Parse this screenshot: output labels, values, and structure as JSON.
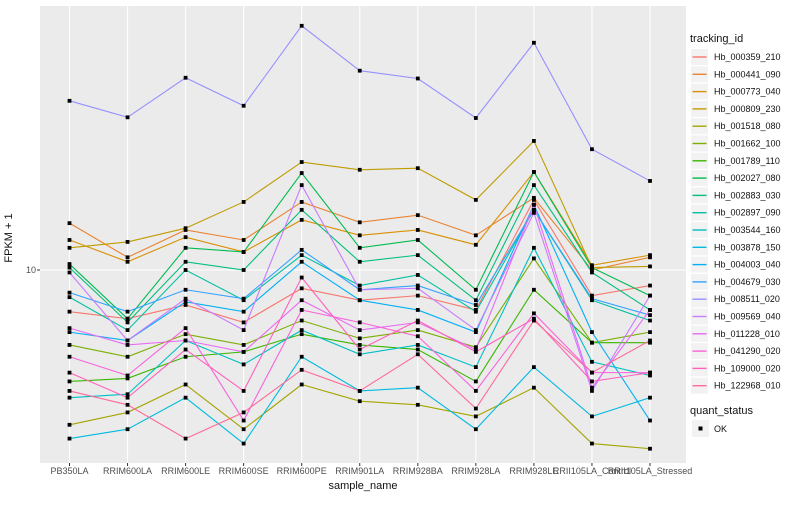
{
  "chart_data": {
    "type": "line",
    "title": "",
    "xlabel": "sample_name",
    "ylabel": "FPKM + 1",
    "y_scale": "log10",
    "y_tick_label": "10",
    "y_ticks": [
      10
    ],
    "ylim_approx": [
      2,
      80
    ],
    "grid": "major-only, white on gray panel",
    "legend_position": "right",
    "legend_title": "tracking_id",
    "point_marker": "black-square",
    "quant_status": {
      "title": "quant_status",
      "label": "OK",
      "marker": "black-square"
    },
    "panel_color": "#EBEBEB",
    "categories": [
      "PB350LA",
      "RRIM600LA",
      "RRIM600LE",
      "RRIM600SE",
      "RRIM600PE",
      "RRIM901LA",
      "RRIM928BA",
      "RRIM928LA",
      "RRIM928LE",
      "RRII105LA_Control",
      "RRII105LA_Stressed"
    ],
    "series": [
      {
        "name": "Hb_000359_210",
        "color": "#F8766D",
        "values": [
          7.1,
          6.7,
          7.5,
          6.5,
          8.6,
          7.8,
          8.1,
          7.2,
          17.8,
          8.1,
          8.8
        ]
      },
      {
        "name": "Hb_000441_090",
        "color": "#EA8331",
        "values": [
          14.7,
          11.1,
          13.9,
          12.8,
          17.5,
          14.8,
          15.7,
          13.3,
          18.1,
          10.0,
          11.1
        ]
      },
      {
        "name": "Hb_000773_040",
        "color": "#D89000",
        "values": [
          12.8,
          10.7,
          13.1,
          11.6,
          15.1,
          13.3,
          13.9,
          12.3,
          22.4,
          10.4,
          11.3
        ]
      },
      {
        "name": "Hb_000809_230",
        "color": "#C09B00",
        "values": [
          12.0,
          12.6,
          14.1,
          17.5,
          24.3,
          22.8,
          23.1,
          17.8,
          28.9,
          10.2,
          10.3
        ]
      },
      {
        "name": "Hb_001518_080",
        "color": "#A3A500",
        "values": [
          2.8,
          3.1,
          3.9,
          2.7,
          3.9,
          3.4,
          3.3,
          3.0,
          3.8,
          2.4,
          2.3
        ]
      },
      {
        "name": "Hb_001662_100",
        "color": "#7CAE00",
        "values": [
          5.4,
          4.9,
          5.9,
          5.4,
          6.6,
          5.7,
          6.1,
          5.3,
          11.0,
          5.5,
          6.0
        ]
      },
      {
        "name": "Hb_001789_110",
        "color": "#39B600",
        "values": [
          4.0,
          4.1,
          4.9,
          5.1,
          5.9,
          5.4,
          5.2,
          4.0,
          8.5,
          5.5,
          5.5
        ]
      },
      {
        "name": "Hb_002027_080",
        "color": "#00BB4E",
        "values": [
          10.5,
          6.7,
          12.0,
          11.6,
          22.2,
          12.0,
          12.8,
          8.5,
          22.4,
          10.2,
          8.1
        ]
      },
      {
        "name": "Hb_002883_030",
        "color": "#00BF7D",
        "values": [
          10.2,
          6.5,
          10.7,
          10.0,
          16.4,
          10.7,
          11.3,
          7.8,
          20.1,
          9.8,
          7.2
        ]
      },
      {
        "name": "Hb_002897_090",
        "color": "#00C1A3",
        "values": [
          8.0,
          6.1,
          10.0,
          7.8,
          11.3,
          8.8,
          9.6,
          7.1,
          16.4,
          7.8,
          6.6
        ]
      },
      {
        "name": "Hb_003544_160",
        "color": "#00BFC4",
        "values": [
          3.5,
          3.6,
          5.6,
          4.6,
          6.1,
          5.0,
          5.4,
          4.5,
          12.0,
          4.7,
          4.2
        ]
      },
      {
        "name": "Hb_003878_150",
        "color": "#00BAE0",
        "values": [
          2.5,
          2.7,
          3.5,
          2.4,
          4.9,
          3.7,
          3.8,
          2.7,
          4.5,
          3.0,
          3.5
        ]
      },
      {
        "name": "Hb_004003_040",
        "color": "#00B0F6",
        "values": [
          6.0,
          5.6,
          7.7,
          7.1,
          10.7,
          7.8,
          7.2,
          6.0,
          17.1,
          6.0,
          2.9
        ]
      },
      {
        "name": "Hb_004679_030",
        "color": "#35A2FF",
        "values": [
          8.3,
          7.1,
          8.5,
          7.9,
          11.8,
          8.5,
          8.8,
          7.5,
          16.4,
          7.9,
          6.9
        ]
      },
      {
        "name": "Hb_008511_020",
        "color": "#9590FF",
        "values": [
          40.2,
          35.1,
          48.6,
          38.6,
          74.5,
          51.5,
          48.3,
          34.9,
          64.8,
          27.0,
          20.8
        ]
      },
      {
        "name": "Hb_009569_040",
        "color": "#C77CFF",
        "values": [
          9.8,
          5.6,
          7.9,
          6.1,
          20.1,
          8.5,
          8.6,
          6.1,
          16.0,
          3.7,
          8.1
        ]
      },
      {
        "name": "Hb_011228_010",
        "color": "#E76BF3",
        "values": [
          6.2,
          5.4,
          5.6,
          5.1,
          7.8,
          6.1,
          6.5,
          5.2,
          17.1,
          3.8,
          7.2
        ]
      },
      {
        "name": "Hb_041290_020",
        "color": "#FA62DB",
        "values": [
          4.9,
          4.2,
          6.2,
          2.9,
          7.2,
          6.5,
          5.8,
          3.7,
          7.0,
          4.3,
          4.3
        ]
      },
      {
        "name": "Hb_109000_020",
        "color": "#FF62BC",
        "values": [
          4.3,
          3.5,
          5.2,
          3.7,
          9.4,
          5.2,
          6.6,
          5.1,
          6.7,
          4.0,
          4.3
        ]
      },
      {
        "name": "Hb_122968_010",
        "color": "#FF6A98",
        "values": [
          3.7,
          3.3,
          2.5,
          3.1,
          4.4,
          3.7,
          5.0,
          3.2,
          6.6,
          4.3,
          5.6
        ]
      }
    ]
  }
}
